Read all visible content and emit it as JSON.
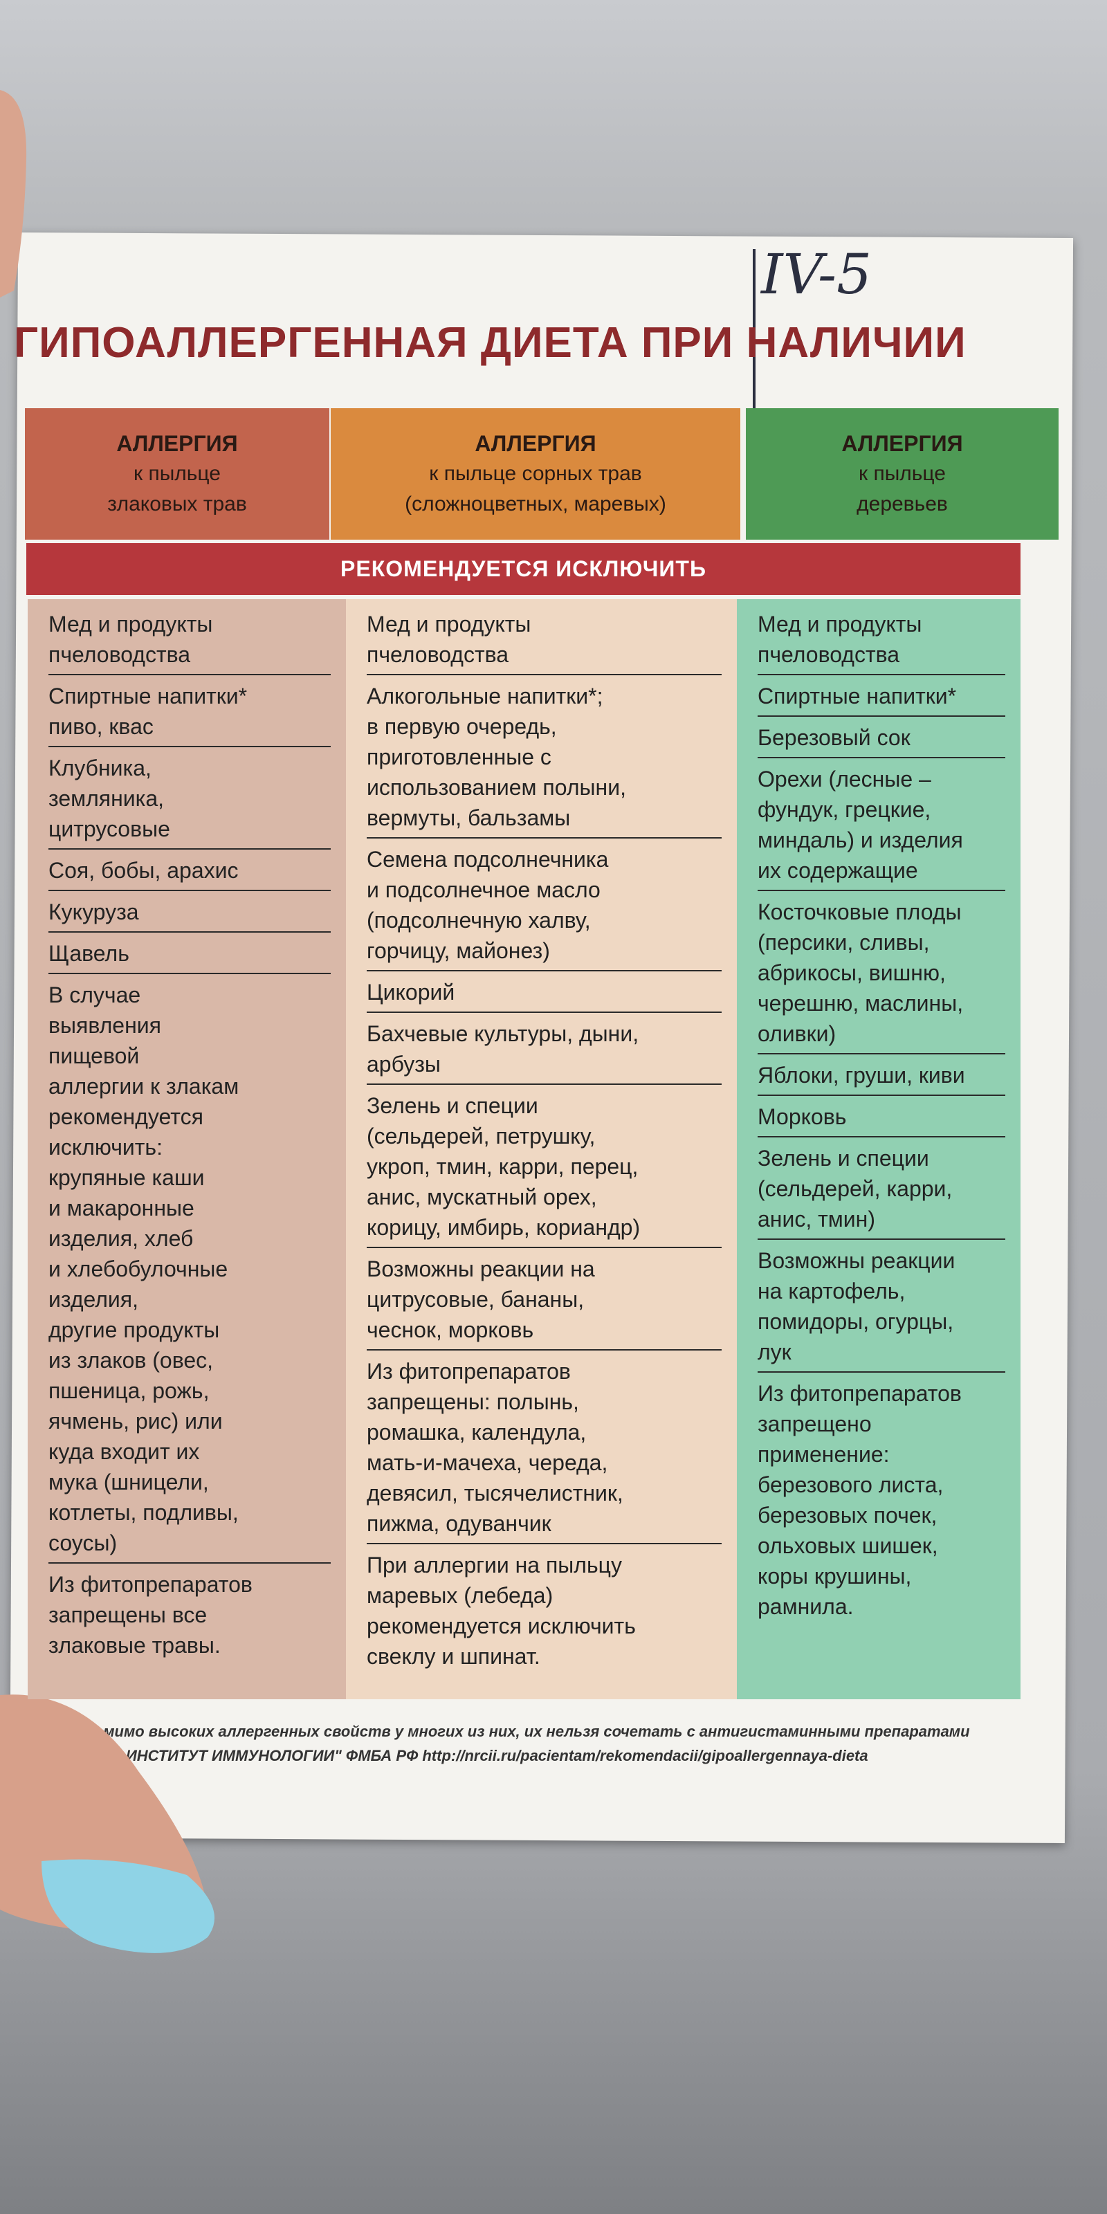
{
  "annotation": "IV-5",
  "title": "ГИПОАЛЛЕРГЕННАЯ ДИЕТА ПРИ НАЛИЧИИ",
  "banner": "РЕКОМЕНДУЕТСЯ ИСКЛЮЧИТЬ",
  "columns": [
    {
      "header": [
        "АЛЛЕРГИЯ",
        "к пыльце",
        "злаковых трав"
      ],
      "items": [
        [
          "Мед и продукты",
          "пчеловодства"
        ],
        [
          "Спиртные напитки*",
          "пиво, квас"
        ],
        [
          "Клубника,",
          "земляника,",
          "цитрусовые"
        ],
        [
          "Соя, бобы, арахис"
        ],
        [
          "Кукуруза"
        ],
        [
          "Щавель"
        ],
        [
          "В случае",
          "выявления",
          "пищевой",
          "аллергии к злакам",
          "рекомендуется",
          "исключить:",
          "крупяные каши",
          "и макаронные",
          "изделия, хлеб",
          "и хлебобулочные",
          "изделия,",
          "другие продукты",
          "из злаков (овес,",
          "пшеница, рожь,",
          "ячмень, рис) или",
          "куда входит их",
          "мука (шницели,",
          "котлеты, подливы,",
          "соусы)"
        ],
        [
          "Из фитопрепаратов",
          "запрещены все",
          "злаковые травы."
        ]
      ]
    },
    {
      "header": [
        "АЛЛЕРГИЯ",
        "к пыльце сорных трав",
        "(сложноцветных, маревых)"
      ],
      "items": [
        [
          "Мед и продукты",
          "пчеловодства"
        ],
        [
          "Алкогольные напитки*;",
          "в первую очередь,",
          "приготовленные с",
          "использованием полыни,",
          "вермуты, бальзамы"
        ],
        [
          "Семена подсолнечника",
          "и подсолнечное масло",
          "(подсолнечную халву,",
          "горчицу, майонез)"
        ],
        [
          "Цикорий"
        ],
        [
          "Бахчевые культуры, дыни,",
          "арбузы"
        ],
        [
          "Зелень и специи",
          "(сельдерей, петрушку,",
          "укроп, тмин, карри, перец,",
          "анис, мускатный орех,",
          "корицу, имбирь, кориандр)"
        ],
        [
          "Возможны реакции на",
          "цитрусовые, бананы,",
          "чеснок, морковь"
        ],
        [
          "Из фитопрепаратов",
          "запрещены: полынь,",
          "ромашка, календула,",
          "мать-и-мачеха, череда,",
          "девясил, тысячелистник,",
          "пижма, одуванчик"
        ],
        [
          "При аллергии на пыльцу",
          "маревых (лебеда)",
          "рекомендуется исключить",
          "свеклу и шпинат."
        ]
      ]
    },
    {
      "header": [
        "АЛЛЕРГИЯ",
        "к пыльце",
        "деревьев"
      ],
      "items": [
        [
          "Мед и продукты",
          "пчеловодства"
        ],
        [
          "Спиртные напитки*"
        ],
        [
          "Березовый сок"
        ],
        [
          "Орехи (лесные –",
          "фундук, грецкие,",
          "миндаль) и изделия",
          "их содержащие"
        ],
        [
          "Косточковые плоды",
          "(персики, сливы,",
          "абрикосы, вишню,",
          "черешню, маслины,",
          "оливки)"
        ],
        [
          "Яблоки, груши, киви"
        ],
        [
          "Морковь"
        ],
        [
          "Зелень и специи",
          "(сельдерей, карри,",
          "анис, тмин)"
        ],
        [
          "Возможны реакции",
          "на картофель,",
          "помидоры, огурцы,",
          "лук"
        ],
        [
          "Из фитопрепаратов",
          "запрещено",
          "применение:",
          "березового листа,",
          "березовых почек,",
          "ольховых шишек,",
          "коры крушины,",
          "рамнила."
        ]
      ]
    }
  ],
  "footnote": [
    "Помимо высоких аллергенных свойств у многих из них, их нельзя сочетать с антигистаминными препаратами",
    "\"ГНЦ ИНСТИТУТ ИММУНОЛОГИИ\" ФМБА РФ  http://nrcii.ru/pacientam/rekomendacii/gipoallergennaya-dieta"
  ]
}
